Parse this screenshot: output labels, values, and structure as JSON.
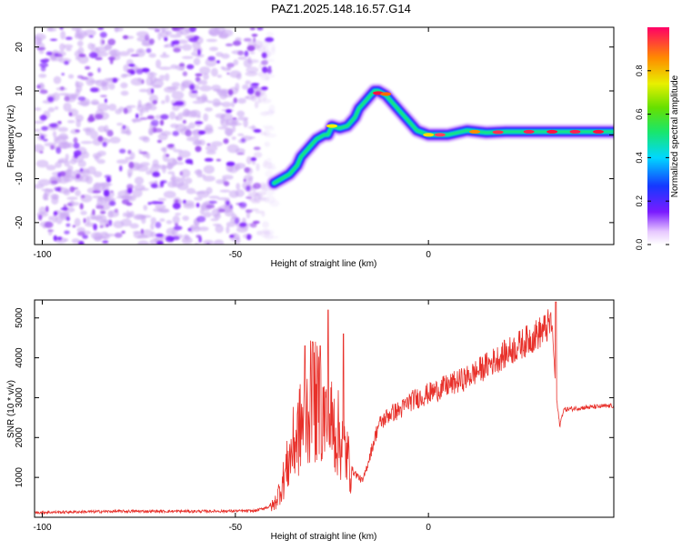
{
  "title": "PAZ1.2025.148.16.57.G14",
  "colors": {
    "snr_line": "#e8302a",
    "frame": "#000000"
  },
  "chart_data": [
    {
      "type": "heatmap",
      "xlabel": "Height of straight line (km)",
      "ylabel": "Frequency (Hz)",
      "xlim": [
        -102,
        48
      ],
      "ylim": [
        -25,
        24.5
      ],
      "xticks": [
        -100,
        -50,
        0
      ],
      "yticks": [
        -20,
        -10,
        0,
        10,
        20
      ],
      "grid": false,
      "noise_region": {
        "x": [
          -102,
          -40
        ],
        "y": [
          -25,
          24.5
        ]
      },
      "ridge": [
        {
          "x": -40,
          "y": -11
        },
        {
          "x": -38,
          "y": -10
        },
        {
          "x": -36,
          "y": -9
        },
        {
          "x": -34,
          "y": -7
        },
        {
          "x": -33,
          "y": -5
        },
        {
          "x": -31,
          "y": -3
        },
        {
          "x": -29,
          "y": -1
        },
        {
          "x": -27,
          "y": 0
        },
        {
          "x": -26,
          "y": 0
        },
        {
          "x": -25,
          "y": 2
        },
        {
          "x": -23,
          "y": 1.5
        },
        {
          "x": -21,
          "y": 2
        },
        {
          "x": -19,
          "y": 4
        },
        {
          "x": -18,
          "y": 6
        },
        {
          "x": -17,
          "y": 7
        },
        {
          "x": -15,
          "y": 9
        },
        {
          "x": -14,
          "y": 10
        },
        {
          "x": -13,
          "y": 10
        },
        {
          "x": -11,
          "y": 9
        },
        {
          "x": -9,
          "y": 7
        },
        {
          "x": -7,
          "y": 5
        },
        {
          "x": -5,
          "y": 3
        },
        {
          "x": -3,
          "y": 1
        },
        {
          "x": 0,
          "y": 0
        },
        {
          "x": 5,
          "y": 0
        },
        {
          "x": 10,
          "y": 1
        },
        {
          "x": 15,
          "y": 0.5
        },
        {
          "x": 20,
          "y": 0.7
        },
        {
          "x": 25,
          "y": 0.7
        },
        {
          "x": 30,
          "y": 0.7
        },
        {
          "x": 35,
          "y": 0.7
        },
        {
          "x": 40,
          "y": 0.7
        },
        {
          "x": 48,
          "y": 0.7
        }
      ],
      "colorbar": {
        "label": "Normalized spectral amplitude",
        "range": [
          0,
          1
        ],
        "ticks": [
          0.0,
          0.2,
          0.4,
          0.6,
          0.8
        ],
        "tick_labels": [
          "0.0",
          "0.2",
          "0.4",
          "0.6",
          "0.8"
        ]
      }
    },
    {
      "type": "line",
      "xlabel": "Height of straight line (km)",
      "ylabel": "SNR (10 * v/v)",
      "xlim": [
        -102,
        48
      ],
      "ylim": [
        0,
        5450
      ],
      "xticks": [
        -100,
        -50,
        0
      ],
      "yticks": [
        1000,
        2000,
        3000,
        4000,
        5000
      ],
      "grid": false,
      "envelope": [
        {
          "x": -102,
          "y": 120
        },
        {
          "x": -80,
          "y": 150
        },
        {
          "x": -60,
          "y": 150
        },
        {
          "x": -45,
          "y": 160
        },
        {
          "x": -40,
          "y": 300
        },
        {
          "x": -38,
          "y": 800
        },
        {
          "x": -35,
          "y": 1800
        },
        {
          "x": -32,
          "y": 2500
        },
        {
          "x": -30,
          "y": 3000
        },
        {
          "x": -27,
          "y": 2500
        },
        {
          "x": -24,
          "y": 2200
        },
        {
          "x": -22,
          "y": 1800
        },
        {
          "x": -20,
          "y": 1200
        },
        {
          "x": -17,
          "y": 900
        },
        {
          "x": -15,
          "y": 1600
        },
        {
          "x": -13,
          "y": 2300
        },
        {
          "x": -10,
          "y": 2600
        },
        {
          "x": -7,
          "y": 2700
        },
        {
          "x": -5,
          "y": 2900
        },
        {
          "x": 0,
          "y": 3100
        },
        {
          "x": 5,
          "y": 3300
        },
        {
          "x": 10,
          "y": 3500
        },
        {
          "x": 15,
          "y": 3800
        },
        {
          "x": 20,
          "y": 4100
        },
        {
          "x": 25,
          "y": 4400
        },
        {
          "x": 30,
          "y": 4700
        },
        {
          "x": 32,
          "y": 4900
        },
        {
          "x": 33,
          "y": 3100
        },
        {
          "x": 34,
          "y": 2300
        },
        {
          "x": 35,
          "y": 2700
        },
        {
          "x": 40,
          "y": 2750
        },
        {
          "x": 48,
          "y": 2800
        }
      ],
      "spikes": [
        {
          "x": -32,
          "y": 4300
        },
        {
          "x": -30,
          "y": 4400
        },
        {
          "x": -28,
          "y": 4300
        },
        {
          "x": -26,
          "y": 5200
        },
        {
          "x": -22,
          "y": 4600
        },
        {
          "x": 33,
          "y": 5400
        }
      ]
    }
  ]
}
